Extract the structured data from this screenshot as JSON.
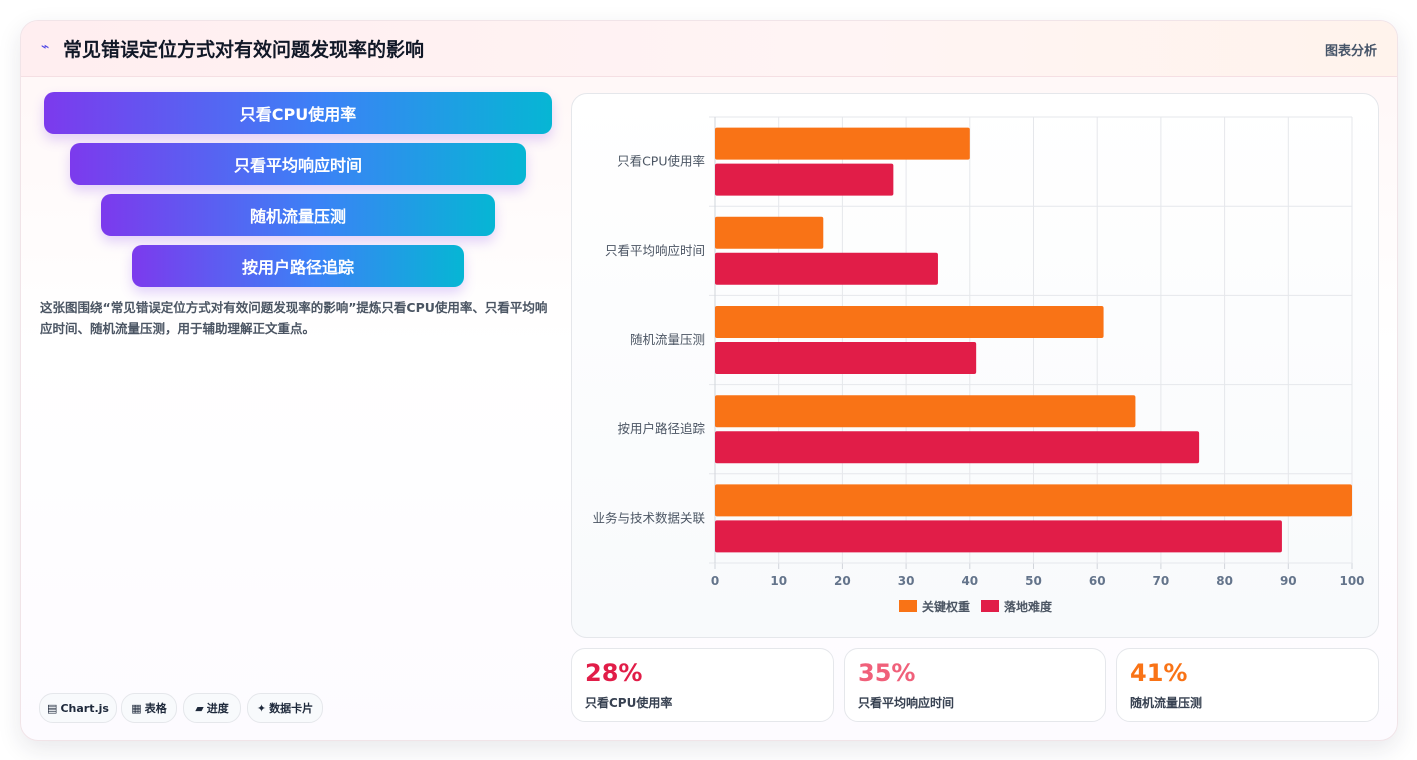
{
  "header": {
    "icon": "bolt-icon",
    "title": "常见错误定位方式对有效问题发现率的影响",
    "right_label": "图表分析"
  },
  "funnel": {
    "items": [
      "只看CPU使用率",
      "只看平均响应时间",
      "随机流量压测",
      "按用户路径追踪"
    ]
  },
  "description": "这张图围绕“常见错误定位方式对有效问题发现率的影响”提炼只看CPU使用率、只看平均响应时间、随机流量压测，用于辅助理解正文重点。",
  "tags": [
    {
      "icon": "▤",
      "label": "Chart.js"
    },
    {
      "icon": "▦",
      "label": "表格"
    },
    {
      "icon": "▰",
      "label": "进度"
    },
    {
      "icon": "✦",
      "label": "数据卡片"
    }
  ],
  "stats": [
    {
      "value": "28%",
      "label": "只看CPU使用率",
      "color": "#e11d48"
    },
    {
      "value": "35%",
      "label": "只看平均响应时间",
      "color": "#f0607a"
    },
    {
      "value": "41%",
      "label": "随机流量压测",
      "color": "#f97316"
    }
  ],
  "colors": {
    "series1": "#f97316",
    "series2": "#e11d48",
    "accent": "#7c3aed"
  },
  "chart_data": {
    "type": "bar",
    "orientation": "horizontal",
    "categories": [
      "只看CPU使用率",
      "只看平均响应时间",
      "随机流量压测",
      "按用户路径追踪",
      "业务与技术数据关联"
    ],
    "series": [
      {
        "name": "关键权重",
        "values": [
          40,
          17,
          61,
          66,
          100
        ],
        "color": "#f97316"
      },
      {
        "name": "落地难度",
        "values": [
          28,
          35,
          41,
          76,
          89
        ],
        "color": "#e11d48"
      }
    ],
    "xlim": [
      0,
      100
    ],
    "xticks": [
      0,
      10,
      20,
      30,
      40,
      50,
      60,
      70,
      80,
      90,
      100
    ],
    "grid": true,
    "legend": "bottom"
  }
}
